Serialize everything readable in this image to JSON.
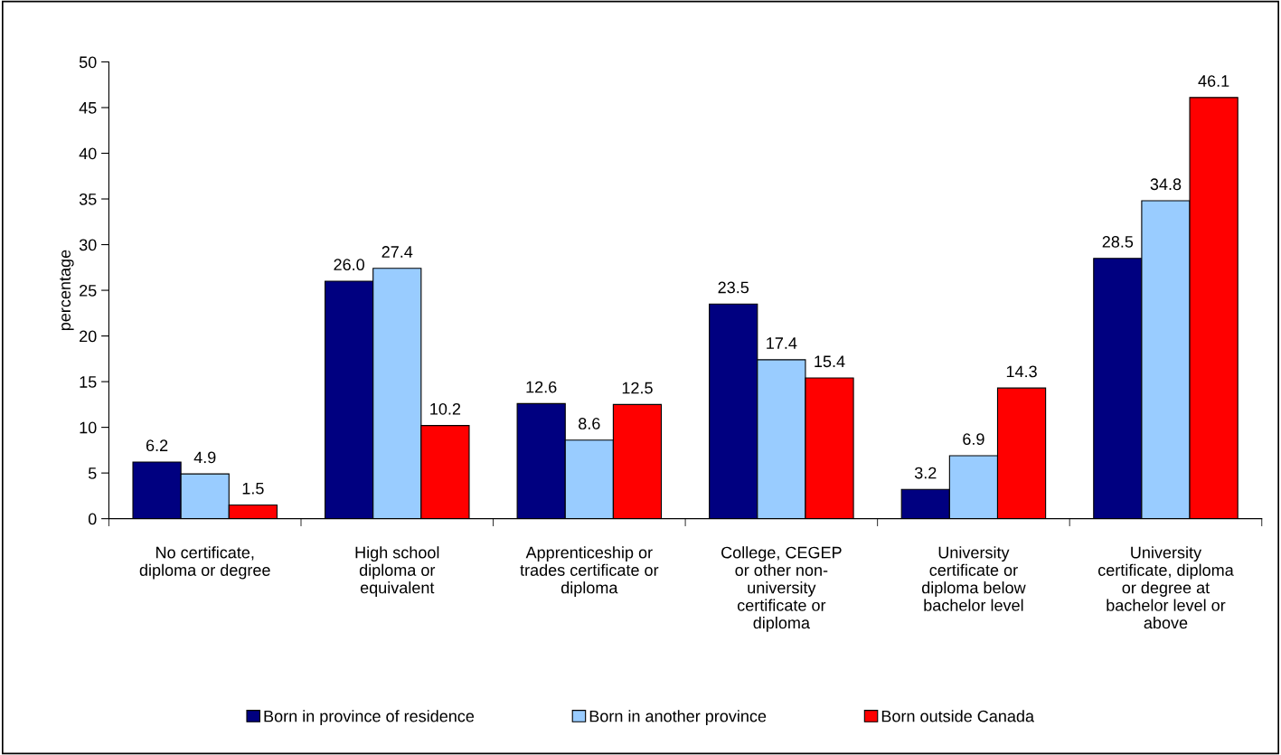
{
  "chart_data": {
    "type": "bar",
    "ylabel": "percentage",
    "categories": [
      "No certificate,\ndiploma or degree",
      "High school\ndiploma or\nequivalent",
      "Apprenticeship or\ntrades certificate or\ndiploma",
      "College, CEGEP\nor other non-\nuniversity\ncertificate or\ndiploma",
      "University\ncertificate or\ndiploma below\nbachelor level",
      "University\ncertificate, diploma\nor degree at\nbachelor level or\nabove"
    ],
    "series": [
      {
        "name": "Born in province of residence",
        "color": "#000080",
        "values": [
          6.2,
          26.0,
          12.6,
          23.5,
          3.2,
          28.5
        ],
        "value_labels": [
          "6.2",
          "26.0",
          "12.6",
          "23.5",
          "3.2",
          "28.5"
        ]
      },
      {
        "name": "Born in another province",
        "color": "#99ccff",
        "values": [
          4.9,
          27.4,
          8.6,
          17.4,
          6.9,
          34.8
        ],
        "value_labels": [
          "4.9",
          "27.4",
          "8.6",
          "17.4",
          "6.9",
          "34.8"
        ]
      },
      {
        "name": "Born outside Canada",
        "color": "#ff0000",
        "values": [
          1.5,
          10.2,
          12.5,
          15.4,
          14.3,
          46.1
        ],
        "value_labels": [
          "1.5",
          "10.2",
          "12.5",
          "15.4",
          "14.3",
          "46.1"
        ]
      }
    ],
    "ylim": [
      0,
      50
    ],
    "yticks": [
      0,
      5,
      10,
      15,
      20,
      25,
      30,
      35,
      40,
      45,
      50
    ],
    "grid": false,
    "legend": "bottom"
  }
}
